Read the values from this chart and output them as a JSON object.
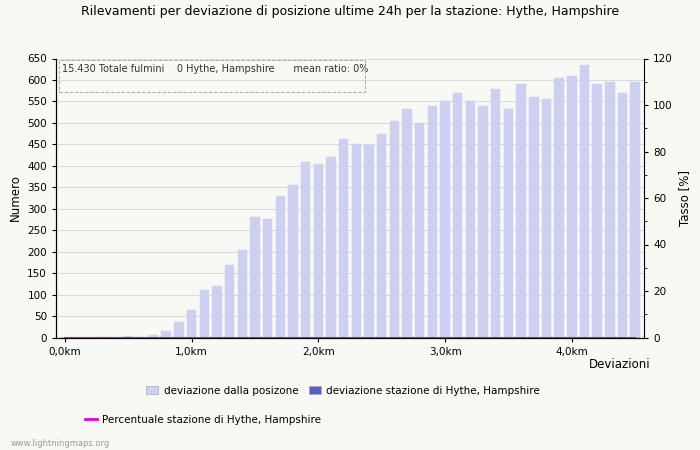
{
  "title": "Rilevamenti per deviazione di posizione ultime 24h per la stazione: Hythe, Hampshire",
  "subtitle": "15.430 Totale fulmini    0 Hythe, Hampshire      mean ratio: 0%",
  "xlabel": "Deviazioni",
  "ylabel_left": "Numero",
  "ylabel_right": "Tasso [%]",
  "ylim_left": [
    0,
    650
  ],
  "ylim_right": [
    0,
    120
  ],
  "yticks_left": [
    0,
    50,
    100,
    150,
    200,
    250,
    300,
    350,
    400,
    450,
    500,
    550,
    600,
    650
  ],
  "yticks_right": [
    0,
    20,
    40,
    60,
    80,
    100,
    120
  ],
  "xtick_positions": [
    0,
    10,
    20,
    30,
    40
  ],
  "xtick_labels": [
    "0,0km",
    "1,0km",
    "2,0km",
    "3,0km",
    "4,0km"
  ],
  "bar_values": [
    0,
    0,
    0,
    1,
    0,
    3,
    2,
    5,
    14,
    35,
    65,
    110,
    120,
    170,
    205,
    280,
    275,
    330,
    355,
    410,
    405,
    420,
    463,
    450,
    448,
    475,
    505,
    533,
    500,
    540,
    550,
    570,
    550,
    540,
    580,
    533,
    590,
    560,
    555,
    605,
    610,
    635,
    590,
    595,
    570,
    595
  ],
  "station_bar_values": [
    0,
    0,
    0,
    0,
    0,
    0,
    0,
    0,
    0,
    0,
    0,
    0,
    0,
    0,
    0,
    0,
    0,
    0,
    0,
    0,
    0,
    0,
    0,
    0,
    0,
    0,
    0,
    0,
    0,
    0,
    0,
    0,
    0,
    0,
    0,
    0,
    0,
    0,
    0,
    0,
    0,
    0,
    0,
    0,
    0,
    0
  ],
  "ratio_values": [
    0,
    0,
    0,
    0,
    0,
    0,
    0,
    0,
    0,
    0,
    0,
    0,
    0,
    0,
    0,
    0,
    0,
    0,
    0,
    0,
    0,
    0,
    0,
    0,
    0,
    0,
    0,
    0,
    0,
    0,
    0,
    0,
    0,
    0,
    0,
    0,
    0,
    0,
    0,
    0,
    0,
    0,
    0,
    0,
    0,
    0
  ],
  "bar_color_light": "#cdd0f0",
  "bar_color_dark": "#5560cc",
  "line_color": "#dd00dd",
  "bg_color": "#f8f8f4",
  "grid_color": "#cccccc",
  "watermark": "www.lightningmaps.org",
  "legend_label_1": "deviazione dalla posizone",
  "legend_label_2": "deviazione stazione di Hythe, Hampshire",
  "legend_label_3": "Percentuale stazione di Hythe, Hampshire"
}
